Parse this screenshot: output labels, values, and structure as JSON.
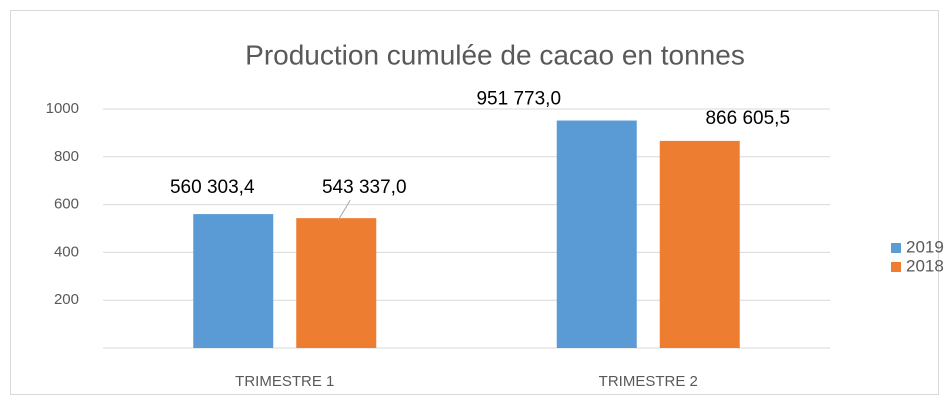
{
  "chart_data": {
    "type": "bar",
    "title": "Production cumulée de cacao en tonnes",
    "categories": [
      "TRIMESTRE 1",
      "TRIMESTRE 2"
    ],
    "series": [
      {
        "name": "2019",
        "color": "#5b9bd5",
        "values": [
          560.3034,
          951.773
        ],
        "value_labels": [
          "560 303,4",
          "951 773,0"
        ]
      },
      {
        "name": "2018",
        "color": "#ed7d31",
        "values": [
          543.337,
          866.6055
        ],
        "value_labels": [
          "543 337,0",
          "866 605,5"
        ]
      }
    ],
    "ylim": [
      0,
      1000
    ],
    "yticks": [
      200,
      400,
      600,
      800,
      1000
    ],
    "grid": true,
    "legend": "right"
  }
}
